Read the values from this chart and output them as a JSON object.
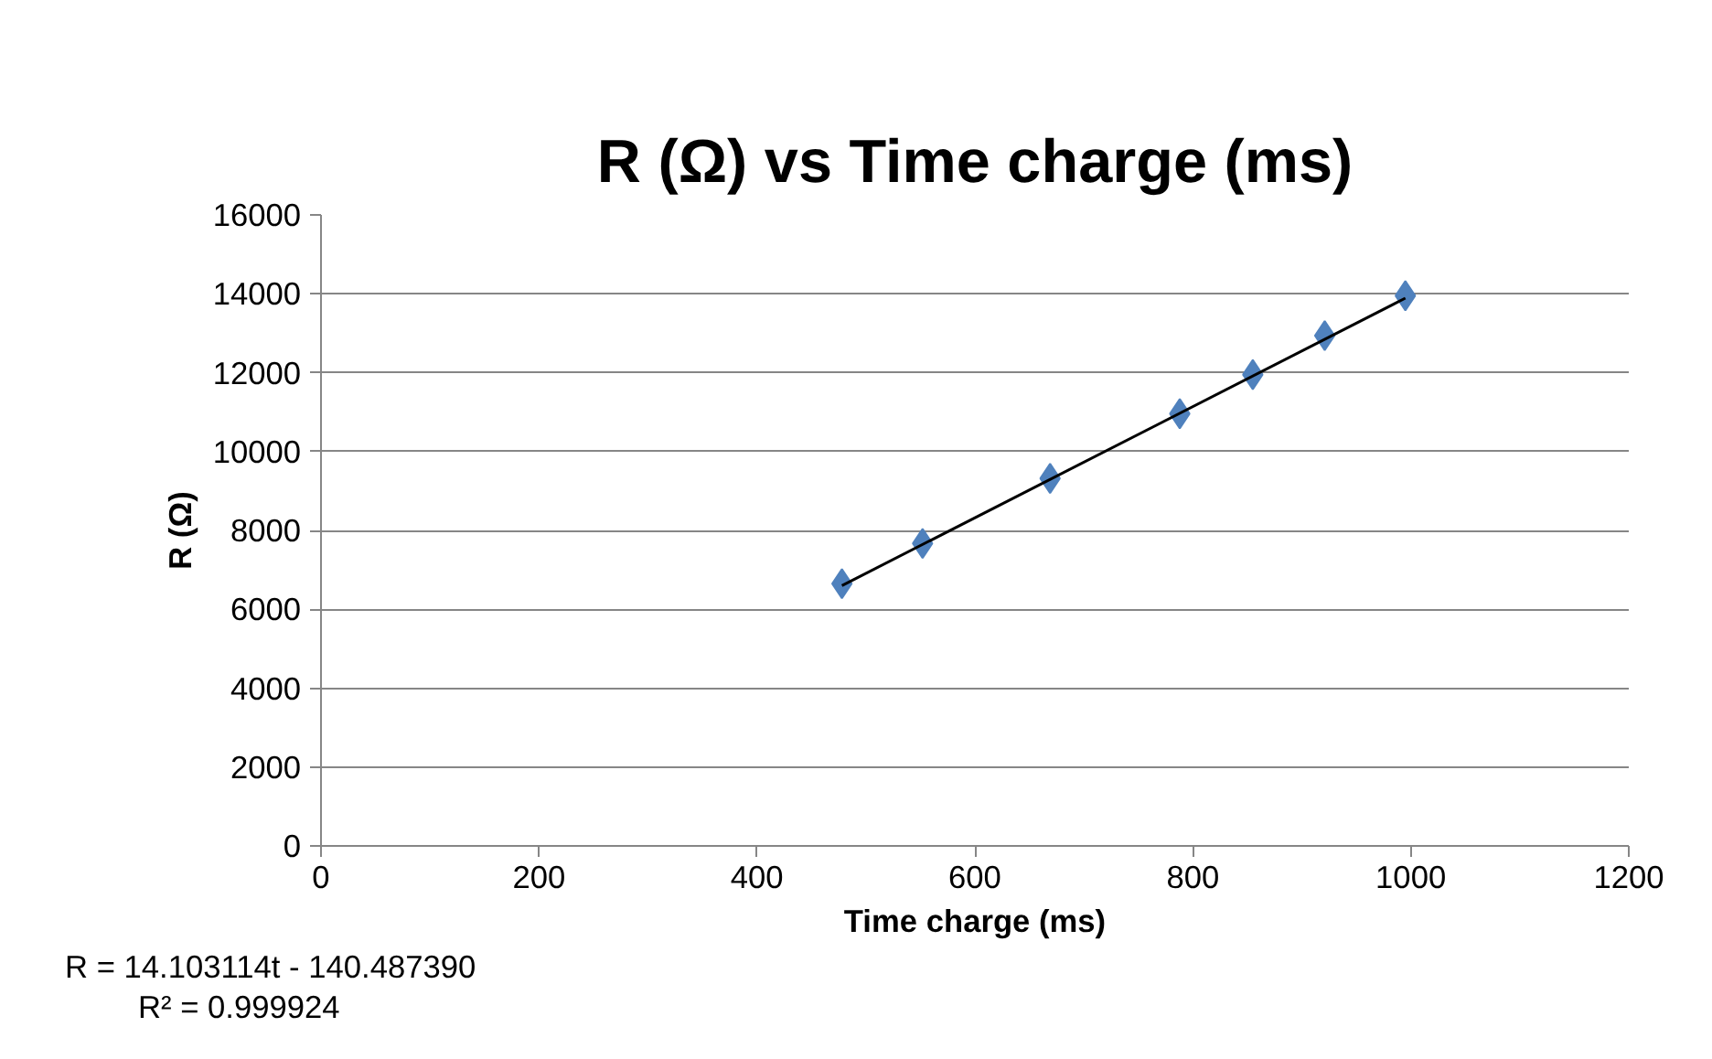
{
  "chart_data": {
    "type": "scatter",
    "title": "R (Ω) vs Time charge (ms)",
    "xlabel": "Time charge (ms)",
    "ylabel": "R (Ω)",
    "x": [
      478,
      552,
      669,
      788,
      855,
      921,
      995
    ],
    "series": [
      {
        "color": "#4f81bd",
        "marker": "diamond",
        "values": [
          6650,
          7670,
          9320,
          10960,
          11950,
          12940,
          13950
        ]
      },
      {
        "type": "line",
        "color": "#000000",
        "marker": "none",
        "x": [
          478,
          995
        ],
        "values": [
          6600,
          13890
        ]
      }
    ],
    "xlim": [
      0,
      1200
    ],
    "xticks": [
      0,
      200,
      400,
      600,
      800,
      1000,
      1200
    ],
    "ylim": [
      0,
      16000
    ],
    "yticks": [
      0,
      2000,
      4000,
      6000,
      8000,
      10000,
      12000,
      14000,
      16000
    ],
    "grid": "y",
    "line_style": "solid",
    "annotations": [
      "R = 14.103114t - 140.487390",
      "R² = 0.999924"
    ]
  }
}
